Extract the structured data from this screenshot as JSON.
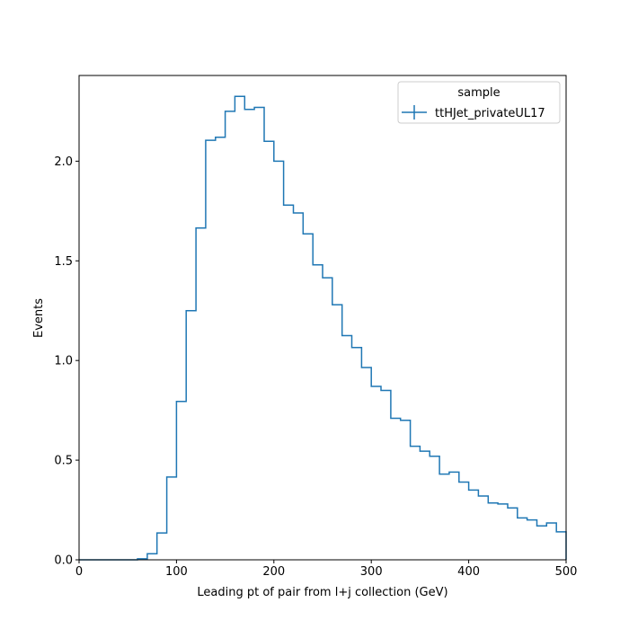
{
  "chart_data": {
    "type": "histogram",
    "xlabel": "Leading pt of pair from l+j collection (GeV)",
    "ylabel": "Events",
    "xlim": [
      0,
      500
    ],
    "ylim": [
      0,
      2.43
    ],
    "x_ticks": [
      0,
      100,
      200,
      300,
      400,
      500
    ],
    "y_ticks": [
      0.0,
      0.5,
      1.0,
      1.5,
      2.0
    ],
    "x_tick_labels": [
      "0",
      "100",
      "200",
      "300",
      "400",
      "500"
    ],
    "y_tick_labels": [
      "0.0",
      "0.5",
      "1.0",
      "1.5",
      "2.0"
    ],
    "grid": false,
    "bin_edges": [
      0,
      10,
      20,
      30,
      40,
      50,
      60,
      70,
      80,
      90,
      100,
      110,
      120,
      130,
      140,
      150,
      160,
      170,
      180,
      190,
      200,
      210,
      220,
      230,
      240,
      250,
      260,
      270,
      280,
      290,
      300,
      310,
      320,
      330,
      340,
      350,
      360,
      370,
      380,
      390,
      400,
      410,
      420,
      430,
      440,
      450,
      460,
      470,
      480,
      490,
      500
    ],
    "series": [
      {
        "name": "ttHJet_privateUL17",
        "color": "#1f77b4",
        "values": [
          0,
          0,
          0,
          0,
          0,
          0,
          0.005,
          0.03,
          0.135,
          0.415,
          0.795,
          1.25,
          1.665,
          2.105,
          2.12,
          2.25,
          2.325,
          2.26,
          2.27,
          2.1,
          2.0,
          1.78,
          1.74,
          1.635,
          1.48,
          1.415,
          1.28,
          1.125,
          1.065,
          0.965,
          0.87,
          0.85,
          0.71,
          0.7,
          0.57,
          0.545,
          0.52,
          0.43,
          0.44,
          0.39,
          0.35,
          0.32,
          0.285,
          0.28,
          0.26,
          0.21,
          0.2,
          0.17,
          0.185,
          0.14
        ]
      }
    ],
    "legend": {
      "title": "sample",
      "placement": "top-right"
    }
  }
}
